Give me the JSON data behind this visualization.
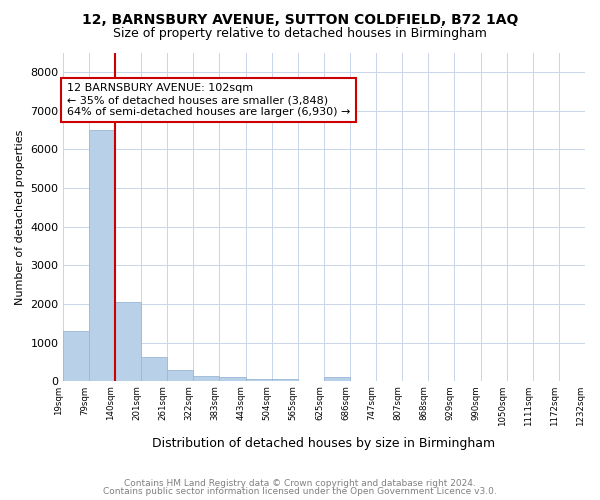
{
  "title": "12, BARNSBURY AVENUE, SUTTON COLDFIELD, B72 1AQ",
  "subtitle": "Size of property relative to detached houses in Birmingham",
  "xlabel": "Distribution of detached houses by size in Birmingham",
  "ylabel": "Number of detached properties",
  "bin_edges": [
    "19sqm",
    "79sqm",
    "140sqm",
    "201sqm",
    "261sqm",
    "322sqm",
    "383sqm",
    "443sqm",
    "504sqm",
    "565sqm",
    "625sqm",
    "686sqm",
    "747sqm",
    "807sqm",
    "868sqm",
    "929sqm",
    "990sqm",
    "1050sqm",
    "1111sqm",
    "1172sqm",
    "1232sqm"
  ],
  "values": [
    1300,
    6500,
    2050,
    620,
    300,
    150,
    110,
    70,
    50,
    0,
    100,
    0,
    0,
    0,
    0,
    0,
    0,
    0,
    0,
    0
  ],
  "bar_color": "#b8d0e8",
  "bar_edge_color": "#9ab8d8",
  "vline_color": "#cc0000",
  "vline_pos": 2,
  "annotation_text": "12 BARNSBURY AVENUE: 102sqm\n← 35% of detached houses are smaller (3,848)\n64% of semi-detached houses are larger (6,930) →",
  "annotation_box_color": "#ffffff",
  "annotation_border_color": "#cc0000",
  "ylim": [
    0,
    8500
  ],
  "yticks": [
    0,
    1000,
    2000,
    3000,
    4000,
    5000,
    6000,
    7000,
    8000
  ],
  "footer1": "Contains HM Land Registry data © Crown copyright and database right 2024.",
  "footer2": "Contains public sector information licensed under the Open Government Licence v3.0.",
  "background_color": "#ffffff",
  "grid_color": "#c8d4e8"
}
